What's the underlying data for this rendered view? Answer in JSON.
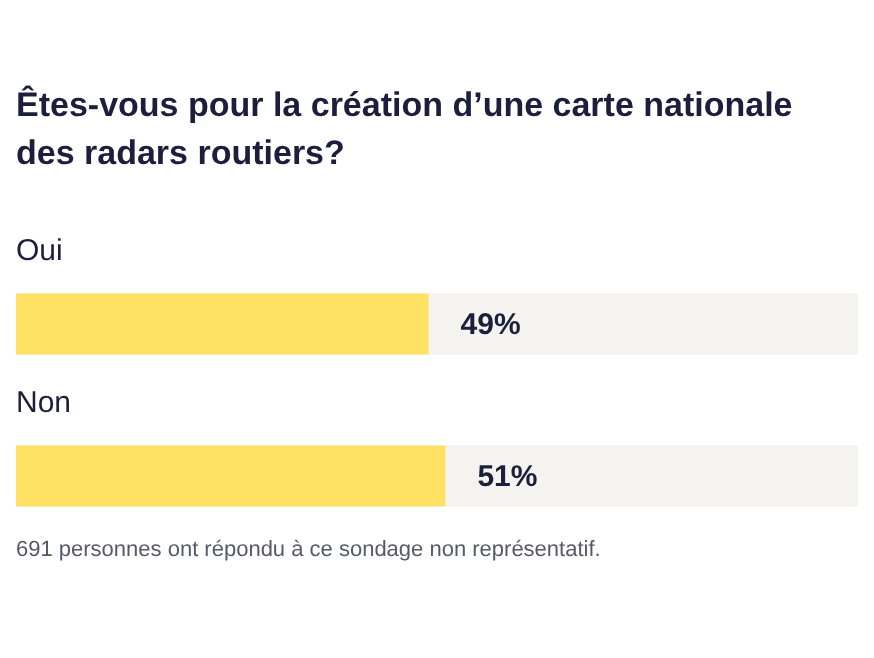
{
  "chart_data": {
    "type": "bar",
    "orientation": "horizontal",
    "title": "Êtes-vous pour la création d’une carte nationale des radars routiers?",
    "categories": [
      "Oui",
      "Non"
    ],
    "values": [
      49,
      51
    ],
    "value_labels": [
      "49%",
      "51%"
    ],
    "color": "#ffe164",
    "xlim": [
      0,
      100
    ],
    "annotations": [
      "691 personnes ont répondu à ce sondage non représentatif."
    ]
  }
}
